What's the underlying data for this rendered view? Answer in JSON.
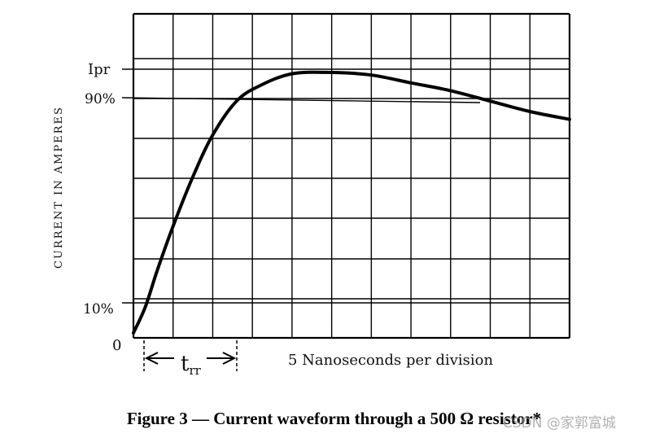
{
  "chart_data": {
    "type": "line",
    "title": "",
    "ylabel": "CURRENT IN AMPERES",
    "xlabel": "5 Nanoseconds per division",
    "y_tick_labels": [
      "Ipr",
      "90%",
      "10%",
      "0"
    ],
    "trr_label": "t",
    "trr_subscript": "rr",
    "grid": true,
    "x_divisions": 11,
    "series": [
      {
        "x": [
          0,
          0.3,
          0.6,
          1.0,
          1.5,
          2.0,
          2.6,
          3.2,
          4.0,
          5.0,
          6.0,
          7.0,
          8.0,
          9.0,
          10.0,
          11.0
        ],
        "y": [
          0,
          10,
          24,
          41,
          60,
          76,
          89,
          95,
          99.5,
          100,
          99,
          96,
          93,
          89,
          85,
          82
        ]
      }
    ]
  },
  "caption": "Figure 3 — Current waveform through a 500 Ω resistor*",
  "watermark": "CSDN @家郭富城"
}
